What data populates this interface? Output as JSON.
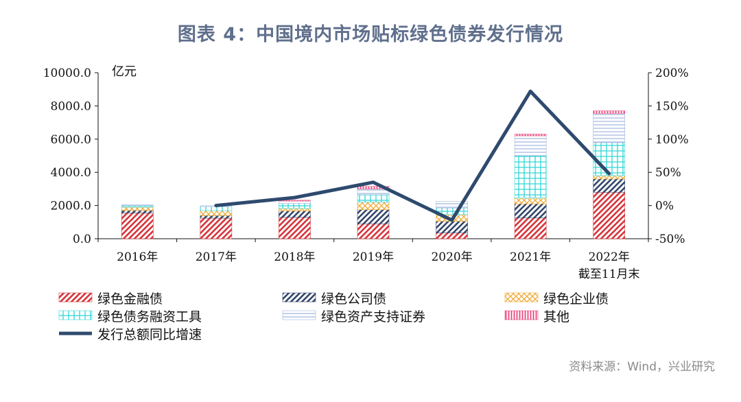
{
  "title": "图表 4：中国境内市场贴标绿色债券发行情况",
  "source": "资料来源：Wind，兴业研究",
  "colors": {
    "title": "#5f6f8c",
    "green_finance": "#d6343a",
    "green_corporate": "#33476b",
    "green_enterprise": "#f0a830",
    "green_debt_financing": "#2fd6d6",
    "green_abs": "#9fb4dd",
    "other": "#e8457a",
    "growth_line": "#2e4a6e"
  },
  "chart_data": {
    "type": "bar",
    "stacked": true,
    "unit_label": "亿元",
    "categories": [
      "2016年",
      "2017年",
      "2018年",
      "2019年",
      "2020年",
      "2021年",
      "2022年 截至11月末"
    ],
    "category_lines": [
      [
        "2016年"
      ],
      [
        "2017年"
      ],
      [
        "2018年"
      ],
      [
        "2019年"
      ],
      [
        "2020年"
      ],
      [
        "2021年"
      ],
      [
        "2022年",
        "截至11月末"
      ]
    ],
    "y_left": {
      "min": 0,
      "max": 10000,
      "step": 2000,
      "tick_labels": [
        "0.0",
        "2000.0",
        "4000.0",
        "6000.0",
        "8000.0",
        "10000.0"
      ]
    },
    "y_right": {
      "min": -0.5,
      "max": 2.0,
      "step": 0.5,
      "tick_labels": [
        "-50%",
        "0%",
        "50%",
        "100%",
        "150%",
        "200%"
      ]
    },
    "series": [
      {
        "name": "绿色金融债",
        "key": "green_finance",
        "pattern": "diag",
        "values": [
          1550,
          1240,
          1290,
          900,
          350,
          1250,
          2800
        ]
      },
      {
        "name": "绿色公司债",
        "key": "green_corporate",
        "pattern": "diag",
        "values": [
          150,
          150,
          380,
          850,
          700,
          850,
          800
        ]
      },
      {
        "name": "绿色企业债",
        "key": "green_enterprise",
        "pattern": "cross",
        "values": [
          200,
          300,
          150,
          450,
          400,
          350,
          200
        ]
      },
      {
        "name": "绿色债务融资工具",
        "key": "green_debt_financing",
        "pattern": "grid",
        "values": [
          100,
          250,
          300,
          450,
          400,
          2550,
          2000
        ]
      },
      {
        "name": "绿色资产支持证券",
        "key": "green_abs",
        "pattern": "hlines",
        "values": [
          50,
          50,
          150,
          350,
          400,
          1200,
          1750
        ]
      },
      {
        "name": "其他",
        "key": "other",
        "pattern": "vlines",
        "values": [
          0,
          0,
          50,
          150,
          0,
          100,
          150
        ]
      }
    ],
    "line": {
      "name": "发行总额同比增速",
      "key": "growth_line",
      "axis": "right",
      "values": [
        null,
        0.0,
        0.12,
        0.35,
        -0.22,
        1.72,
        0.48
      ]
    },
    "legend_position": "bottom",
    "grid": false
  }
}
